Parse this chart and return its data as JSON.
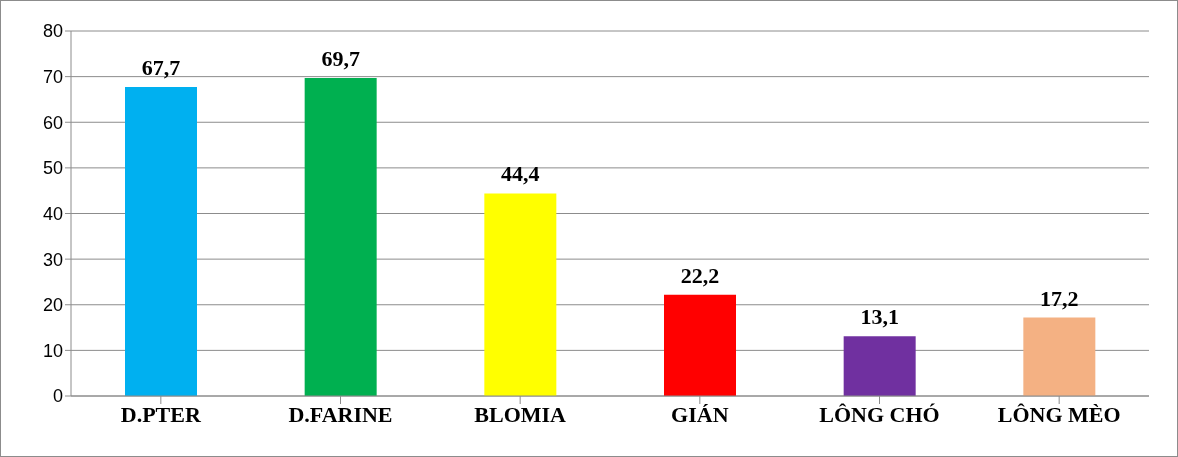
{
  "chart_data": {
    "type": "bar",
    "categories": [
      "D.PTER",
      "D.FARINE",
      "BLOMIA",
      "GIÁN",
      "LÔNG CHÓ",
      "LÔNG MÈO"
    ],
    "values": [
      67.7,
      69.7,
      44.4,
      22.2,
      13.1,
      17.2
    ],
    "colors": [
      "#00b0f0",
      "#00b050",
      "#ffff00",
      "#ff0000",
      "#7030a0",
      "#f4b183"
    ],
    "value_labels": [
      "67,7",
      "69,7",
      "44,4",
      "22,2",
      "13,1",
      "17,2"
    ],
    "ylim": [
      0,
      80
    ],
    "yticks": [
      0,
      10,
      20,
      30,
      40,
      50,
      60,
      70,
      80
    ],
    "grid": "y"
  }
}
